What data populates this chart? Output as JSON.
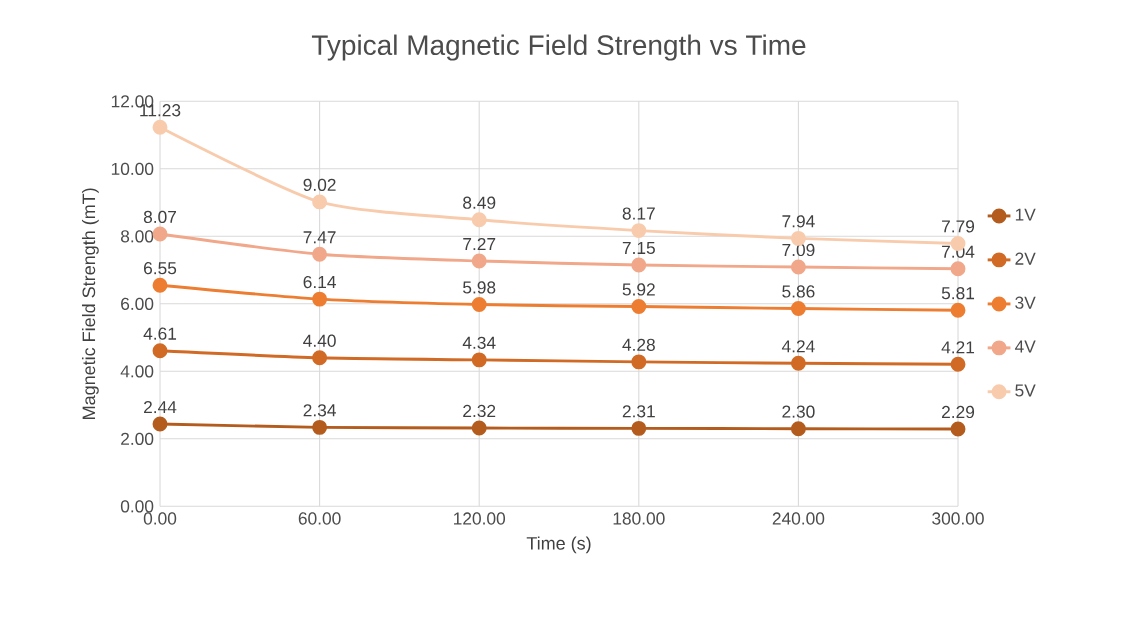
{
  "chart_data": {
    "type": "line",
    "title": "Typical Magnetic Field Strength vs Time",
    "xlabel": "Time (s)",
    "ylabel": "Magnetic Field Strength (mT)",
    "x": [
      0,
      60,
      120,
      180,
      240,
      300
    ],
    "xlim": [
      0,
      300
    ],
    "xticks": [
      {
        "value": 0,
        "label": "0.00"
      },
      {
        "value": 60,
        "label": "60.00"
      },
      {
        "value": 120,
        "label": "120.00"
      },
      {
        "value": 180,
        "label": "180.00"
      },
      {
        "value": 240,
        "label": "240.00"
      },
      {
        "value": 300,
        "label": "300.00"
      }
    ],
    "ylim": [
      0,
      12
    ],
    "yticks": [
      {
        "value": 0,
        "label": "0.00"
      },
      {
        "value": 2,
        "label": "2.00"
      },
      {
        "value": 4,
        "label": "4.00"
      },
      {
        "value": 6,
        "label": "6.00"
      },
      {
        "value": 8,
        "label": "8.00"
      },
      {
        "value": 10,
        "label": "10.00"
      },
      {
        "value": 12,
        "label": "12.00"
      }
    ],
    "grid": true,
    "legend": "right",
    "marker": "circle",
    "line_style": "solid",
    "series": [
      {
        "name": "1V",
        "color": "#b35c1e",
        "values": [
          2.44,
          2.34,
          2.32,
          2.31,
          2.3,
          2.29
        ],
        "value_labels": [
          "2.44",
          "2.34",
          "2.32",
          "2.31",
          "2.30",
          "2.29"
        ]
      },
      {
        "name": "2V",
        "color": "#d06a25",
        "values": [
          4.61,
          4.4,
          4.34,
          4.28,
          4.24,
          4.21
        ],
        "value_labels": [
          "4.61",
          "4.40",
          "4.34",
          "4.28",
          "4.24",
          "4.21"
        ]
      },
      {
        "name": "3V",
        "color": "#ed7d31",
        "values": [
          6.55,
          6.14,
          5.98,
          5.92,
          5.86,
          5.81
        ],
        "value_labels": [
          "6.55",
          "6.14",
          "5.98",
          "5.92",
          "5.86",
          "5.81"
        ]
      },
      {
        "name": "4V",
        "color": "#f1a78a",
        "values": [
          8.07,
          7.47,
          7.27,
          7.15,
          7.09,
          7.04
        ],
        "value_labels": [
          "8.07",
          "7.47",
          "7.27",
          "7.15",
          "7.09",
          "7.04"
        ]
      },
      {
        "name": "5V",
        "color": "#f8cbad",
        "values": [
          11.23,
          9.02,
          8.49,
          8.17,
          7.94,
          7.79
        ],
        "value_labels": [
          "11.23",
          "9.02",
          "8.49",
          "8.17",
          "7.94",
          "7.79"
        ]
      }
    ]
  }
}
